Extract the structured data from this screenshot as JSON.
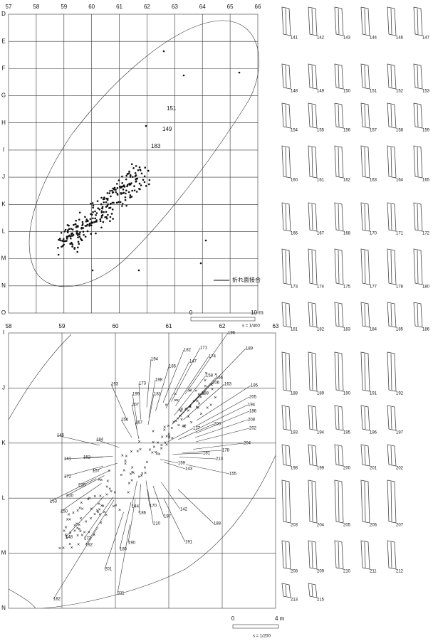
{
  "map_upper": {
    "columns": [
      "57",
      "58",
      "59",
      "60",
      "61",
      "62",
      "63",
      "64",
      "65",
      "66"
    ],
    "rows": [
      "D",
      "E",
      "F",
      "G",
      "H",
      "I",
      "J",
      "K",
      "L",
      "M",
      "N",
      "O"
    ],
    "point_labels": [
      "151",
      "149",
      "183"
    ],
    "legend": "折れ面接合",
    "scale": {
      "zero": "0",
      "length": "10 m",
      "ratio": "s = 1/400"
    }
  },
  "map_lower": {
    "columns": [
      "58",
      "59",
      "60",
      "61",
      "62",
      "63"
    ],
    "rows": [
      "I",
      "J",
      "K",
      "L",
      "M",
      "N"
    ],
    "point_labels": [
      "194",
      "185",
      "182",
      "147",
      "171",
      "174",
      "196",
      "189",
      "198",
      "158",
      "166",
      "206",
      "163",
      "188",
      "173",
      "193",
      "199",
      "181",
      "195",
      "205",
      "194",
      "186",
      "207",
      "154",
      "167",
      "200",
      "208",
      "202",
      "146",
      "177",
      "204",
      "184",
      "178",
      "141",
      "152",
      "181",
      "213",
      "172",
      "157",
      "159",
      "143",
      "153",
      "216",
      "200",
      "150",
      "144",
      "170",
      "155",
      "186",
      "197",
      "142",
      "210",
      "188",
      "148",
      "173",
      "192",
      "190",
      "180",
      "191",
      "201",
      "182",
      "211"
    ],
    "scale": {
      "zero": "0",
      "length": "4 m",
      "ratio": "s = 1/200"
    }
  },
  "artifacts": {
    "rows": [
      [
        "141",
        "142",
        "143",
        "144",
        "146",
        "147"
      ],
      [
        "148",
        "149",
        "150",
        "151",
        "152",
        "153"
      ],
      [
        "154",
        "155",
        "156",
        "157",
        "158",
        "159"
      ],
      [
        "160",
        "161",
        "162",
        "163",
        "164",
        "165"
      ],
      [
        "166",
        "167",
        "168",
        "170",
        "171",
        "172"
      ],
      [
        "173",
        "174",
        "175",
        "177",
        "178",
        "180"
      ],
      [
        "181",
        "182",
        "183",
        "184",
        "185",
        "186"
      ],
      [
        "188",
        "189",
        "190",
        "191",
        "192"
      ],
      [
        "193",
        "194",
        "195",
        "196",
        "197"
      ],
      [
        "198",
        "199",
        "200",
        "201",
        "202"
      ],
      [
        "203",
        "204",
        "205",
        "206",
        "207"
      ],
      [
        "208",
        "209",
        "210",
        "211",
        "212"
      ],
      [
        "213",
        "215"
      ]
    ]
  }
}
